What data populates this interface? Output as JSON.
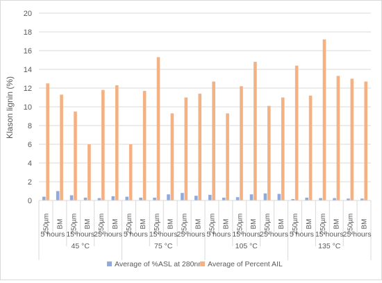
{
  "chart_data": {
    "type": "bar",
    "ylabel": "Klason lignin (%)",
    "ylim": [
      0,
      20
    ],
    "yticks": [
      0,
      2,
      4,
      6,
      8,
      10,
      12,
      14,
      16,
      18,
      20
    ],
    "grid": true,
    "legend_position": "bottom",
    "temperatures": [
      "45 °C",
      "75 °C",
      "105 °C",
      "135 °C"
    ],
    "times": [
      "5 hours",
      "15 hours",
      "25 hours"
    ],
    "treatments": [
      "250µm",
      "BM"
    ],
    "categories": [
      "45 °C | 5 hours | 250µm",
      "45 °C | 5 hours | BM",
      "45 °C | 15 hours | 250µm",
      "45 °C | 15 hours | BM",
      "45 °C | 25 hours | 250µm",
      "45 °C | 25 hours | BM",
      "75 °C | 5 hours | 250µm",
      "75 °C | 5 hours | BM",
      "75 °C | 15 hours | 250µm",
      "75 °C | 15 hours | BM",
      "75 °C | 25 hours | 250µm",
      "75 °C | 25 hours | BM",
      "105 °C | 5 hours | 250µm",
      "105 °C | 5 hours | BM",
      "105 °C | 15 hours | 250µm",
      "105 °C | 15 hours | BM",
      "105 °C | 25 hours | 250µm",
      "105 °C | 25 hours | BM",
      "135 °C | 5 hours | 250µm",
      "135 °C | 5 hours | BM",
      "135 °C | 15 hours | 250µm",
      "135 °C | 15 hours | BM",
      "135 °C | 25 hours | 250µm",
      "135 °C | 25 hours | BM"
    ],
    "series": [
      {
        "name": "Average of %ASL at 280nm",
        "color": "#8faadc",
        "values": [
          0.4,
          1.0,
          0.55,
          0.3,
          0.25,
          0.45,
          0.4,
          0.3,
          0.3,
          0.65,
          0.8,
          0.5,
          0.6,
          0.3,
          0.35,
          0.65,
          0.75,
          0.7,
          0.15,
          0.3,
          0.25,
          0.25,
          0.2,
          0.2
        ]
      },
      {
        "name": "Average of Percent AIL",
        "color": "#f4b183",
        "values": [
          12.5,
          11.3,
          9.5,
          6.0,
          11.8,
          12.3,
          6.0,
          11.7,
          15.3,
          9.3,
          11.0,
          11.4,
          12.7,
          9.3,
          12.2,
          14.8,
          10.1,
          11.0,
          14.4,
          11.2,
          17.2,
          13.3,
          13.0,
          12.7
        ]
      }
    ]
  }
}
